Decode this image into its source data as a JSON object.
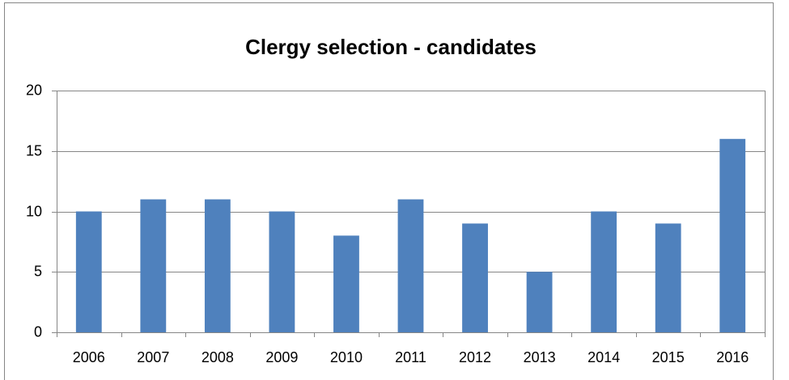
{
  "chart_data": {
    "type": "bar",
    "title": "Clergy selection - candidates",
    "categories": [
      "2006",
      "2007",
      "2008",
      "2009",
      "2010",
      "2011",
      "2012",
      "2013",
      "2014",
      "2015",
      "2016"
    ],
    "values": [
      10,
      11,
      11,
      10,
      8,
      11,
      9,
      5,
      10,
      9,
      16
    ],
    "color": "#4f81bd",
    "ylim": [
      0,
      20
    ],
    "yticks": [
      0,
      5,
      10,
      15,
      20
    ],
    "grid": true
  }
}
